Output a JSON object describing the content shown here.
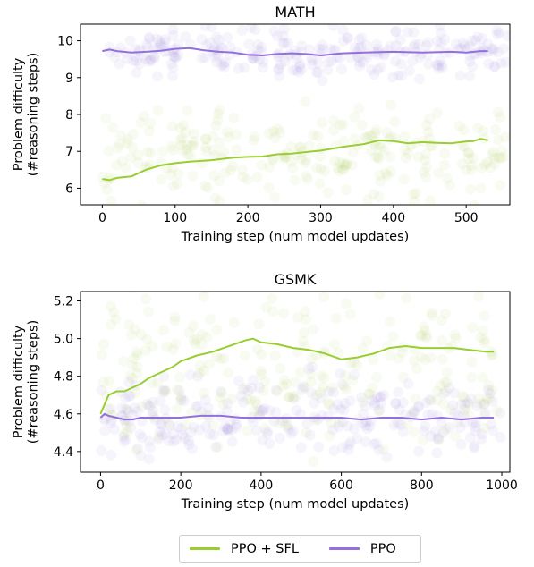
{
  "colors": {
    "ppo_sfl": "#9acd32",
    "ppo": "#9370db"
  },
  "legend": {
    "items": [
      {
        "label": "PPO + SFL",
        "color": "#9acd32"
      },
      {
        "label": "PPO",
        "color": "#9370db"
      }
    ],
    "placement": "bottom-center"
  },
  "chart_data": [
    {
      "type": "line",
      "title": "MATH",
      "xlabel": "Training step (num model updates)",
      "ylabel": "Problem difficulty\n(#reasoning steps)",
      "xlim": [
        -30,
        560
      ],
      "ylim": [
        5.55,
        10.45
      ],
      "xticks": [
        0,
        100,
        200,
        300,
        400,
        500
      ],
      "yticks": [
        6,
        7,
        8,
        9,
        10
      ],
      "grid": false,
      "scatter_background": {
        "PPO + SFL": {
          "x_range": [
            0,
            560
          ],
          "y_center": 6.9,
          "y_spread": 1.3
        },
        "PPO": {
          "x_range": [
            0,
            560
          ],
          "y_center": 9.7,
          "y_spread": 0.65
        }
      },
      "series": [
        {
          "name": "PPO + SFL",
          "x": [
            0,
            10,
            20,
            40,
            60,
            80,
            100,
            120,
            150,
            180,
            200,
            220,
            240,
            260,
            280,
            300,
            330,
            360,
            380,
            400,
            420,
            440,
            460,
            480,
            500,
            510,
            520,
            530
          ],
          "y": [
            6.25,
            6.22,
            6.28,
            6.32,
            6.5,
            6.62,
            6.68,
            6.72,
            6.76,
            6.83,
            6.85,
            6.86,
            6.92,
            6.94,
            6.98,
            7.02,
            7.12,
            7.2,
            7.3,
            7.28,
            7.22,
            7.25,
            7.23,
            7.22,
            7.27,
            7.28,
            7.34,
            7.3
          ]
        },
        {
          "name": "PPO",
          "x": [
            0,
            10,
            20,
            40,
            60,
            80,
            100,
            120,
            140,
            160,
            180,
            200,
            220,
            240,
            260,
            280,
            300,
            330,
            360,
            400,
            440,
            480,
            500,
            520,
            530
          ],
          "y": [
            9.72,
            9.76,
            9.72,
            9.68,
            9.7,
            9.73,
            9.78,
            9.8,
            9.74,
            9.7,
            9.68,
            9.62,
            9.6,
            9.64,
            9.66,
            9.64,
            9.6,
            9.66,
            9.68,
            9.7,
            9.68,
            9.7,
            9.68,
            9.72,
            9.72
          ]
        }
      ]
    },
    {
      "type": "line",
      "title": "GSMK",
      "xlabel": "Training step (num model updates)",
      "ylabel": "Problem difficulty\n(#reasoning steps)",
      "xlim": [
        -50,
        1020
      ],
      "ylim": [
        4.29,
        5.25
      ],
      "xticks": [
        0,
        200,
        400,
        600,
        800,
        1000
      ],
      "yticks": [
        4.4,
        4.6,
        4.8,
        5.0,
        5.2
      ],
      "grid": false,
      "scatter_background": {
        "PPO + SFL": {
          "x_range": [
            0,
            1000
          ],
          "y_center": 4.8,
          "y_spread": 0.45
        },
        "PPO": {
          "x_range": [
            0,
            1000
          ],
          "y_center": 4.58,
          "y_spread": 0.22
        }
      },
      "series": [
        {
          "name": "PPO + SFL",
          "x": [
            0,
            10,
            20,
            40,
            60,
            80,
            100,
            120,
            150,
            180,
            200,
            240,
            280,
            320,
            360,
            380,
            400,
            440,
            480,
            520,
            560,
            600,
            640,
            680,
            720,
            760,
            800,
            840,
            880,
            920,
            960,
            980
          ],
          "y": [
            4.6,
            4.65,
            4.7,
            4.72,
            4.72,
            4.74,
            4.76,
            4.79,
            4.82,
            4.85,
            4.88,
            4.91,
            4.93,
            4.96,
            4.99,
            5.0,
            4.98,
            4.97,
            4.95,
            4.94,
            4.92,
            4.89,
            4.9,
            4.92,
            4.95,
            4.96,
            4.95,
            4.95,
            4.95,
            4.94,
            4.93,
            4.93
          ]
        },
        {
          "name": "PPO",
          "x": [
            0,
            10,
            20,
            40,
            60,
            80,
            100,
            150,
            200,
            250,
            300,
            350,
            400,
            450,
            500,
            550,
            600,
            650,
            700,
            750,
            800,
            850,
            900,
            950,
            980
          ],
          "y": [
            4.58,
            4.6,
            4.59,
            4.58,
            4.57,
            4.57,
            4.58,
            4.58,
            4.58,
            4.59,
            4.59,
            4.58,
            4.58,
            4.58,
            4.58,
            4.58,
            4.58,
            4.57,
            4.58,
            4.58,
            4.57,
            4.58,
            4.57,
            4.58,
            4.58
          ]
        }
      ]
    }
  ]
}
